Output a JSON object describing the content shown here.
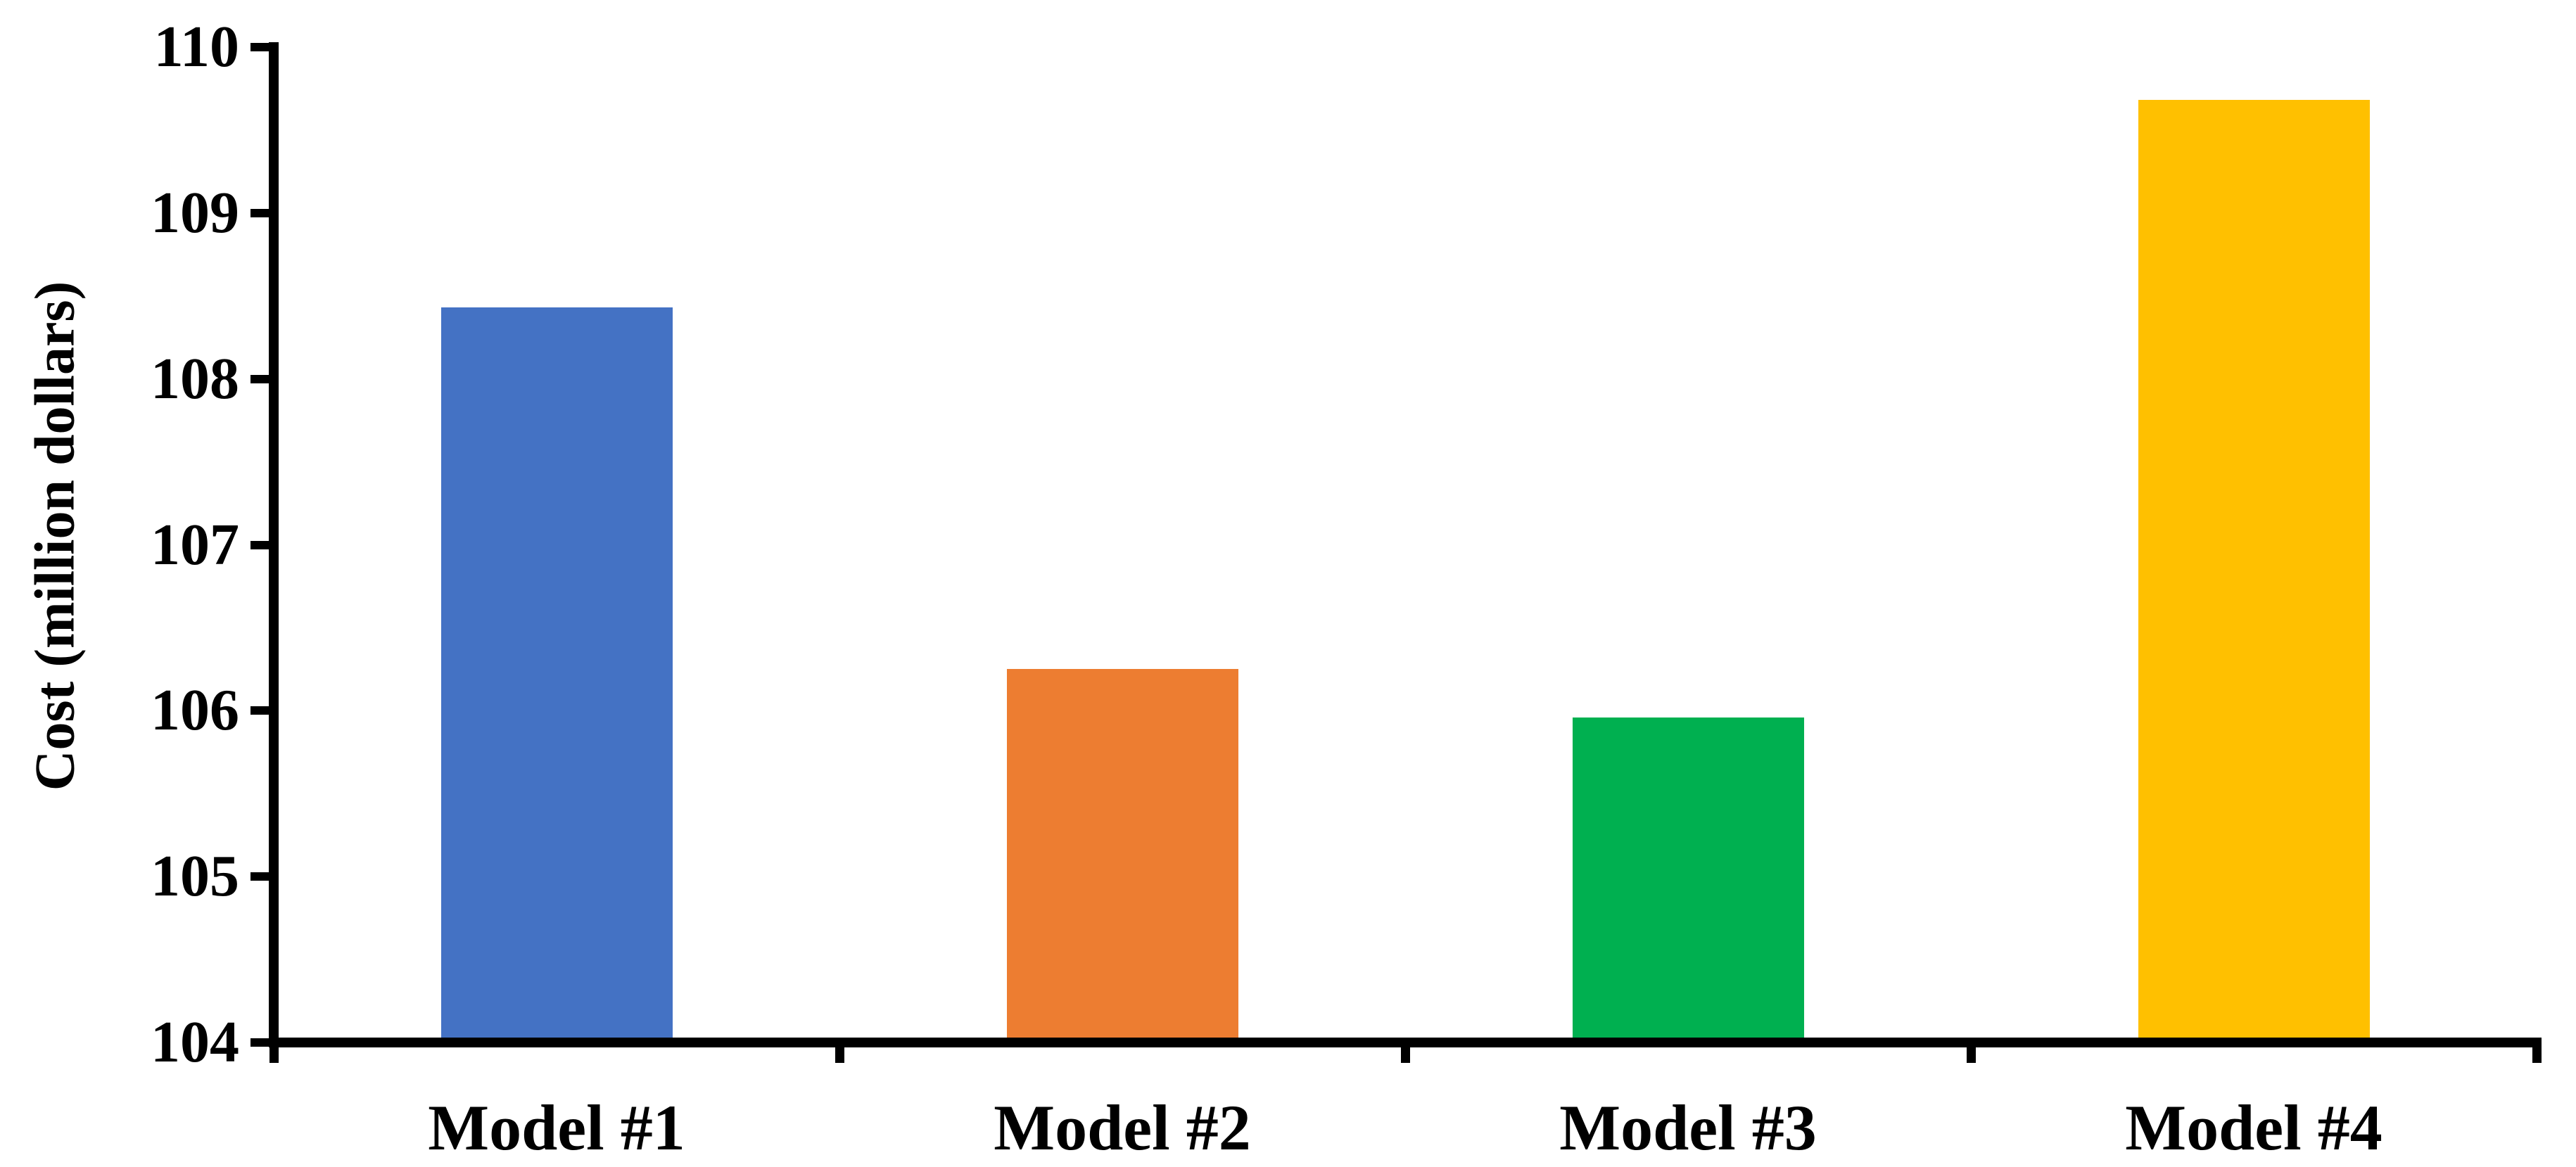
{
  "chart_data": {
    "type": "bar",
    "title": "",
    "categories": [
      "Model #1",
      "Model #2",
      "Model #3",
      "Model #4"
    ],
    "values": [
      108.43,
      106.25,
      105.96,
      109.68
    ],
    "bar_colors": [
      "#4472C4",
      "#ED7D31",
      "#00B050",
      "#FFC000"
    ],
    "ylabel": "Cost (million dollars)",
    "xlabel": "",
    "ylim": [
      104,
      110
    ],
    "ytick_step": 1,
    "ytick_labels": [
      "104",
      "105",
      "106",
      "107",
      "108",
      "109",
      "110"
    ],
    "grid": false,
    "legend_position": "none",
    "axis_color": "#000000",
    "background_color": "#FFFFFF",
    "bar_width_fraction": 0.41,
    "tick_direction": "out",
    "xtick_placement": "category-boundaries"
  }
}
